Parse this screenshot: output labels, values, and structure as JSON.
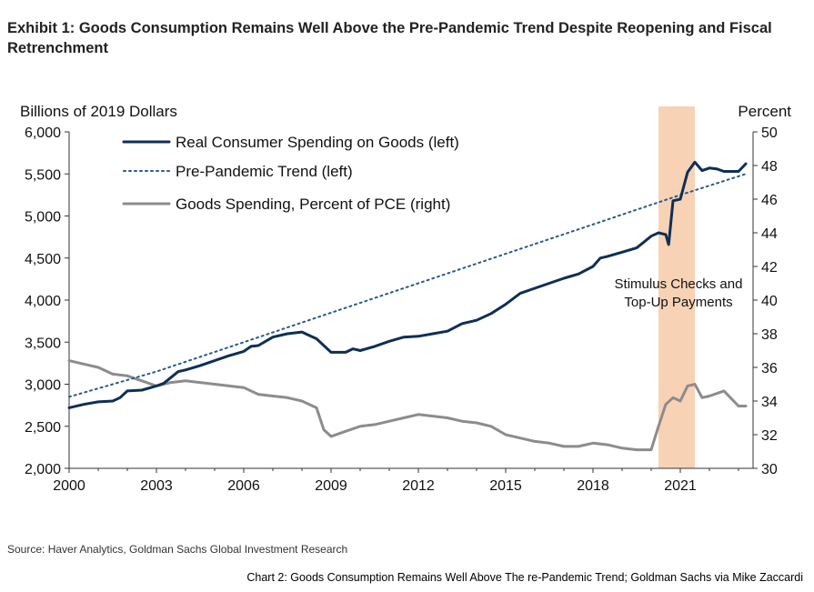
{
  "header": {
    "title": "Exhibit 1: Goods Consumption Remains Well Above the Pre-Pandemic Trend Despite Reopening and Fiscal Retrenchment"
  },
  "footer": {
    "source": "Source: Haver Analytics, Goldman Sachs Global Investment Research",
    "caption": "Chart 2: Goods Consumption Remains Well Above The re-Pandemic Trend; Goldman Sachs via Mike Zaccardi"
  },
  "chart_data": {
    "type": "line",
    "ylabel_left": "Billions of 2019 Dollars",
    "ylabel_right": "Percent",
    "xlim": [
      2000,
      2023.5
    ],
    "ylim_left": [
      2000,
      6000
    ],
    "ylim_right": [
      30,
      50
    ],
    "x_ticks": [
      "2000",
      "2003",
      "2006",
      "2009",
      "2012",
      "2015",
      "2018",
      "2021"
    ],
    "y_ticks_left": [
      "2,000",
      "2,500",
      "3,000",
      "3,500",
      "4,000",
      "4,500",
      "5,000",
      "5,500",
      "6,000"
    ],
    "y_ticks_right": [
      "30",
      "32",
      "34",
      "36",
      "38",
      "40",
      "42",
      "44",
      "46",
      "48",
      "50"
    ],
    "grid": false,
    "legend_position": "top-left",
    "colors": {
      "spending": "#0e2f56",
      "trend": "#2a5a8a",
      "share": "#8c8c8c",
      "shade": "#f7d2b5"
    },
    "annotation": {
      "line1": "Stimulus Checks and",
      "line2": "Top-Up Payments",
      "x_start": 2020.25,
      "x_end": 2021.5
    },
    "series": [
      {
        "name": "Real Consumer Spending on Goods (left)",
        "axis": "left",
        "style": "solid",
        "points": [
          [
            2000,
            2720
          ],
          [
            2000.5,
            2760
          ],
          [
            2001,
            2790
          ],
          [
            2001.5,
            2800
          ],
          [
            2001.75,
            2840
          ],
          [
            2002,
            2920
          ],
          [
            2002.5,
            2930
          ],
          [
            2003,
            2980
          ],
          [
            2003.25,
            3010
          ],
          [
            2003.5,
            3080
          ],
          [
            2003.75,
            3150
          ],
          [
            2004,
            3170
          ],
          [
            2004.5,
            3220
          ],
          [
            2005,
            3280
          ],
          [
            2005.5,
            3340
          ],
          [
            2006,
            3390
          ],
          [
            2006.25,
            3450
          ],
          [
            2006.5,
            3460
          ],
          [
            2007,
            3560
          ],
          [
            2007.5,
            3600
          ],
          [
            2008,
            3620
          ],
          [
            2008.25,
            3580
          ],
          [
            2008.5,
            3540
          ],
          [
            2009,
            3380
          ],
          [
            2009.5,
            3380
          ],
          [
            2009.75,
            3420
          ],
          [
            2010,
            3400
          ],
          [
            2010.5,
            3450
          ],
          [
            2011,
            3510
          ],
          [
            2011.5,
            3560
          ],
          [
            2012,
            3570
          ],
          [
            2012.5,
            3600
          ],
          [
            2013,
            3630
          ],
          [
            2013.5,
            3720
          ],
          [
            2014,
            3760
          ],
          [
            2014.5,
            3840
          ],
          [
            2015,
            3950
          ],
          [
            2015.5,
            4080
          ],
          [
            2016,
            4140
          ],
          [
            2016.5,
            4200
          ],
          [
            2017,
            4260
          ],
          [
            2017.5,
            4310
          ],
          [
            2018,
            4400
          ],
          [
            2018.25,
            4500
          ],
          [
            2018.5,
            4520
          ],
          [
            2019,
            4570
          ],
          [
            2019.5,
            4620
          ],
          [
            2019.75,
            4690
          ],
          [
            2020,
            4760
          ],
          [
            2020.25,
            4800
          ],
          [
            2020.5,
            4780
          ],
          [
            2020.6,
            4660
          ],
          [
            2020.75,
            5180
          ],
          [
            2021,
            5200
          ],
          [
            2021.25,
            5520
          ],
          [
            2021.5,
            5640
          ],
          [
            2021.75,
            5540
          ],
          [
            2022,
            5570
          ],
          [
            2022.25,
            5560
          ],
          [
            2022.5,
            5530
          ],
          [
            2023,
            5530
          ],
          [
            2023.25,
            5620
          ]
        ]
      },
      {
        "name": "Pre-Pandemic Trend  (left)",
        "axis": "left",
        "style": "dotted",
        "points": [
          [
            2000,
            2850
          ],
          [
            2003,
            3150
          ],
          [
            2006,
            3500
          ],
          [
            2009,
            3850
          ],
          [
            2012,
            4200
          ],
          [
            2015,
            4550
          ],
          [
            2018,
            4900
          ],
          [
            2021,
            5250
          ],
          [
            2023.25,
            5500
          ]
        ]
      },
      {
        "name": "Goods Spending, Percent of PCE (right)",
        "axis": "right",
        "style": "solid",
        "points": [
          [
            2000,
            36.4
          ],
          [
            2000.5,
            36.2
          ],
          [
            2001,
            36.0
          ],
          [
            2001.5,
            35.6
          ],
          [
            2002,
            35.5
          ],
          [
            2002.5,
            35.2
          ],
          [
            2003,
            34.9
          ],
          [
            2003.5,
            35.1
          ],
          [
            2004,
            35.2
          ],
          [
            2004.5,
            35.1
          ],
          [
            2005,
            35.0
          ],
          [
            2005.5,
            34.9
          ],
          [
            2006,
            34.8
          ],
          [
            2006.5,
            34.4
          ],
          [
            2007,
            34.3
          ],
          [
            2007.5,
            34.2
          ],
          [
            2008,
            34.0
          ],
          [
            2008.5,
            33.6
          ],
          [
            2008.75,
            32.3
          ],
          [
            2009,
            31.9
          ],
          [
            2009.5,
            32.2
          ],
          [
            2010,
            32.5
          ],
          [
            2010.5,
            32.6
          ],
          [
            2011,
            32.8
          ],
          [
            2011.5,
            33.0
          ],
          [
            2012,
            33.2
          ],
          [
            2012.5,
            33.1
          ],
          [
            2013,
            33.0
          ],
          [
            2013.5,
            32.8
          ],
          [
            2014,
            32.7
          ],
          [
            2014.5,
            32.5
          ],
          [
            2015,
            32.0
          ],
          [
            2015.5,
            31.8
          ],
          [
            2016,
            31.6
          ],
          [
            2016.5,
            31.5
          ],
          [
            2017,
            31.3
          ],
          [
            2017.5,
            31.3
          ],
          [
            2018,
            31.5
          ],
          [
            2018.5,
            31.4
          ],
          [
            2019,
            31.2
          ],
          [
            2019.5,
            31.1
          ],
          [
            2020,
            31.1
          ],
          [
            2020.25,
            32.5
          ],
          [
            2020.5,
            33.8
          ],
          [
            2020.75,
            34.2
          ],
          [
            2021,
            34.0
          ],
          [
            2021.25,
            34.9
          ],
          [
            2021.5,
            35.0
          ],
          [
            2021.75,
            34.2
          ],
          [
            2022,
            34.3
          ],
          [
            2022.5,
            34.6
          ],
          [
            2023,
            33.7
          ],
          [
            2023.25,
            33.7
          ]
        ]
      }
    ]
  }
}
